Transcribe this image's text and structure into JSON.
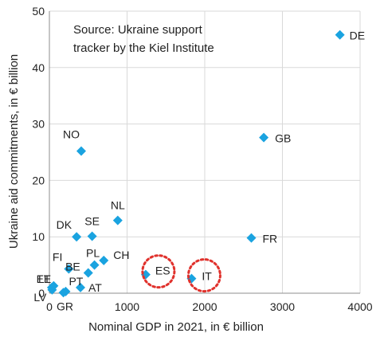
{
  "chart_data": {
    "type": "scatter",
    "title": "",
    "annotation": [
      "Source: Ukraine support",
      "tracker by the Kiel Institute"
    ],
    "xlabel": "Nominal GDP in 2021, in € billion",
    "ylabel": "Ukraine aid commitments, in € billion",
    "xlim": [
      0,
      4000
    ],
    "ylim": [
      0,
      50
    ],
    "xticks": [
      0,
      1000,
      2000,
      3000,
      4000
    ],
    "yticks": [
      0,
      10,
      20,
      30,
      40,
      50
    ],
    "grid": true,
    "marker_color": "#1aa3e0",
    "highlight_color": "#e0312c",
    "highlighted": [
      "ES",
      "IT"
    ],
    "points": [
      {
        "label": "DE",
        "x": 3740,
        "y": 45.8
      },
      {
        "label": "GB",
        "x": 2760,
        "y": 27.6
      },
      {
        "label": "FR",
        "x": 2600,
        "y": 9.8
      },
      {
        "label": "NO",
        "x": 410,
        "y": 25.2
      },
      {
        "label": "NL",
        "x": 880,
        "y": 12.9
      },
      {
        "label": "DK",
        "x": 350,
        "y": 10.0
      },
      {
        "label": "SE",
        "x": 550,
        "y": 10.1
      },
      {
        "label": "PL",
        "x": 580,
        "y": 5.0
      },
      {
        "label": "CH",
        "x": 700,
        "y": 5.8
      },
      {
        "label": "BE",
        "x": 500,
        "y": 3.6
      },
      {
        "label": "FI",
        "x": 250,
        "y": 4.3
      },
      {
        "label": "ES",
        "x": 1240,
        "y": 3.3
      },
      {
        "label": "IT",
        "x": 1830,
        "y": 2.6
      },
      {
        "label": "EE",
        "x": 30,
        "y": 1.0
      },
      {
        "label": "LT",
        "x": 55,
        "y": 1.3
      },
      {
        "label": "LV",
        "x": 35,
        "y": 0.6
      },
      {
        "label": "PT",
        "x": 210,
        "y": 0.3
      },
      {
        "label": "GR",
        "x": 180,
        "y": 0.1
      },
      {
        "label": "AT",
        "x": 400,
        "y": 1.0
      }
    ]
  }
}
